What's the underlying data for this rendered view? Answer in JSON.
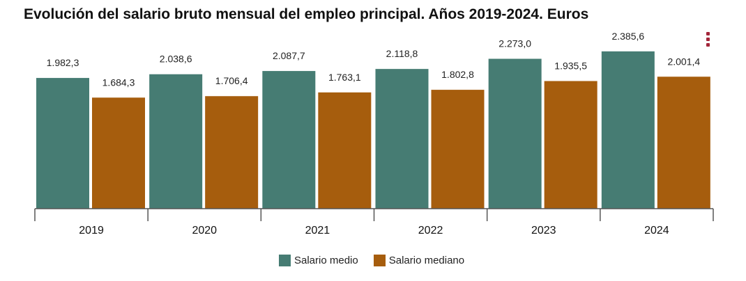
{
  "chart_data": {
    "type": "bar",
    "title": "Evolución del salario bruto mensual del empleo principal. Años 2019-2024. Euros",
    "categories": [
      "2019",
      "2020",
      "2021",
      "2022",
      "2023",
      "2024"
    ],
    "series": [
      {
        "name": "Salario medio",
        "color": "#467c73",
        "values": [
          1982.3,
          2038.6,
          2087.7,
          2118.8,
          2273.0,
          2385.6
        ],
        "labels": [
          "1.982,3",
          "2.038,6",
          "2.087,7",
          "2.118,8",
          "2.273,0",
          "2.385,6"
        ]
      },
      {
        "name": "Salario mediano",
        "color": "#a65d0d",
        "values": [
          1684.3,
          1706.4,
          1763.1,
          1802.8,
          1935.5,
          2001.4
        ],
        "labels": [
          "1.684,3",
          "1.706,4",
          "1.763,1",
          "1.802,8",
          "1.935,5",
          "2.001,4"
        ]
      }
    ],
    "ylim": [
      0,
      2500
    ],
    "grid": false,
    "legend_position": "bottom-center"
  },
  "menu": {
    "icon": "vertical-dots-icon",
    "color": "#a3263a"
  }
}
